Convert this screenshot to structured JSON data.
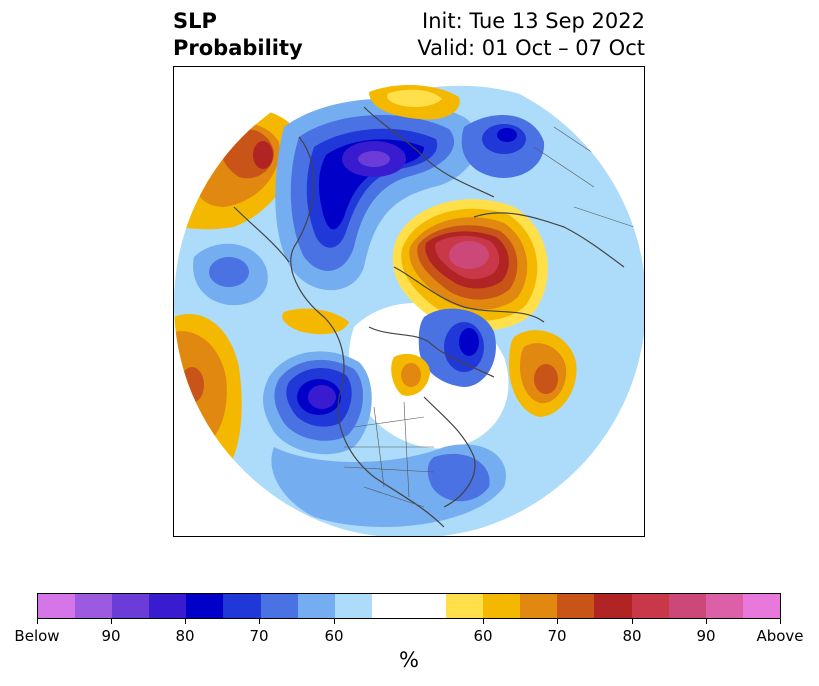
{
  "header": {
    "title_line1": "SLP",
    "title_line2": "Probability",
    "init_text": "Init: Tue 13 Sep 2022",
    "valid_text": "Valid: 01 Oct – 07 Oct"
  },
  "colorbar": {
    "unit": "%",
    "colors": [
      "#d575e8",
      "#9b5ae0",
      "#6b3cd8",
      "#3a1cd0",
      "#0000c8",
      "#2038d8",
      "#4a72e2",
      "#74aef0",
      "#addcfa",
      "#ffffff",
      "#ffe04a",
      "#f5b800",
      "#e08810",
      "#c85418",
      "#b02424",
      "#c83848",
      "#cc4878",
      "#dc60a8",
      "#e878dc"
    ],
    "tick_labels": [
      "Below",
      "90",
      "80",
      "70",
      "60",
      "60",
      "70",
      "80",
      "90",
      "Above"
    ]
  }
}
